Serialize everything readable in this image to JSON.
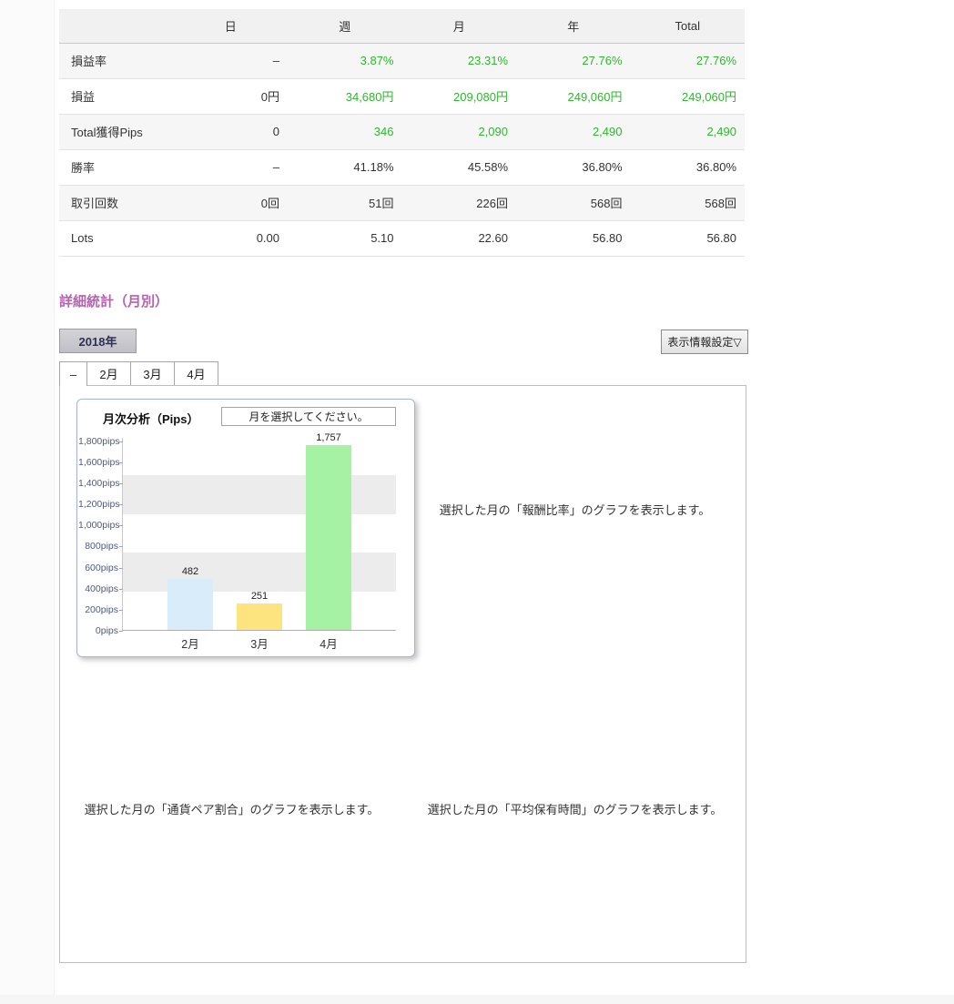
{
  "accent": {
    "green": "#2eb82e",
    "heading_purple": "#b464ae",
    "axis_blue": "#4a5b8c"
  },
  "summary_table": {
    "headers": [
      "日",
      "週",
      "月",
      "年",
      "Total"
    ],
    "rows": [
      {
        "label": "損益率",
        "values": [
          "–",
          "3.87%",
          "23.31%",
          "27.76%",
          "27.76%"
        ],
        "colors": [
          "black",
          "green",
          "green",
          "green",
          "green"
        ]
      },
      {
        "label": "損益",
        "values": [
          "0円",
          "34,680円",
          "209,080円",
          "249,060円",
          "249,060円"
        ],
        "colors": [
          "black",
          "green",
          "green",
          "green",
          "green"
        ]
      },
      {
        "label": "Total獲得Pips",
        "values": [
          "0",
          "346",
          "2,090",
          "2,490",
          "2,490"
        ],
        "colors": [
          "black",
          "green",
          "green",
          "green",
          "green"
        ]
      },
      {
        "label": "勝率",
        "values": [
          "–",
          "41.18%",
          "45.58%",
          "36.80%",
          "36.80%"
        ],
        "colors": [
          "black",
          "black",
          "black",
          "black",
          "black"
        ]
      },
      {
        "label": "取引回数",
        "values": [
          "0回",
          "51回",
          "226回",
          "568回",
          "568回"
        ],
        "colors": [
          "black",
          "black",
          "black",
          "black",
          "black"
        ]
      },
      {
        "label": "Lots",
        "values": [
          "0.00",
          "5.10",
          "22.60",
          "56.80",
          "56.80"
        ],
        "colors": [
          "black",
          "black",
          "black",
          "black",
          "black"
        ]
      }
    ]
  },
  "section": {
    "title": "詳細統計（月別）",
    "year_button": "2018年",
    "settings_button": "表示情報設定▽",
    "tabs": [
      "–",
      "2月",
      "3月",
      "4月"
    ],
    "active_tab_index": 0
  },
  "placeholders": {
    "reward_ratio": "選択した月の「報酬比率」のグラフを表示します。",
    "currency_pair": "選択した月の「通貨ペア割合」のグラフを表示します。",
    "avg_hold_time": "選択した月の「平均保有時間」のグラフを表示します。"
  },
  "chart_data": {
    "type": "bar",
    "title": "月次分析（Pips）",
    "prompt_box": "月を選択してください。",
    "categories": [
      "2月",
      "3月",
      "4月"
    ],
    "values": [
      482,
      251,
      1757
    ],
    "values_display": [
      "482",
      "251",
      "1,757"
    ],
    "bar_colors": [
      "#d9ecfa",
      "#fde47f",
      "#a5f2a5"
    ],
    "yticks": [
      0,
      200,
      400,
      600,
      800,
      1000,
      1200,
      1400,
      1600,
      1800
    ],
    "ytick_suffix": "pips",
    "ylim": [
      0,
      1833
    ],
    "stripe_bands": [
      [
        367,
        733
      ],
      [
        1100,
        1467
      ]
    ],
    "grid": "striped-bands",
    "legend": "none",
    "xlabel": "",
    "ylabel": "pips"
  }
}
